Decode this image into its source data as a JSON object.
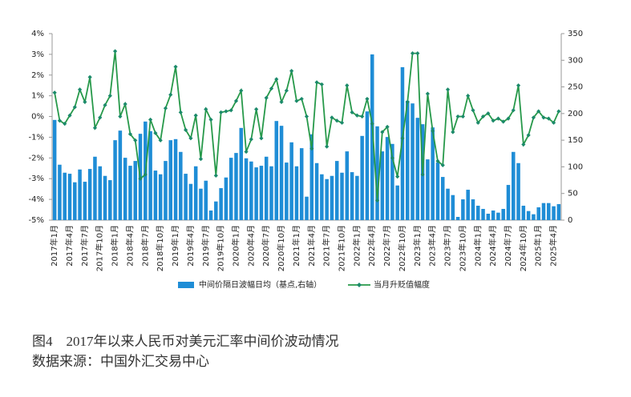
{
  "chart_data": {
    "type": "bar_line",
    "title": "图4　2017年以来人民币对美元汇率中间价波动情况",
    "source": "数据来源：中国外汇交易中心",
    "categories": [
      "2017年1月",
      null,
      null,
      "2017年4月",
      null,
      null,
      "2017年7月",
      null,
      null,
      "2017年10月",
      null,
      null,
      "2018年1月",
      null,
      null,
      "2018年4月",
      null,
      null,
      "2018年7月",
      null,
      null,
      "2018年10月",
      null,
      null,
      "2019年1月",
      null,
      null,
      "2019年4月",
      null,
      null,
      "2019年7月",
      null,
      null,
      "2019年10月",
      null,
      null,
      "2020年1月",
      null,
      null,
      "2020年4月",
      null,
      null,
      "2020年7月",
      null,
      null,
      "2020年10月",
      null,
      null,
      "2021年1月",
      null,
      null,
      "2021年4月",
      null,
      null,
      "2021年7月",
      null,
      null,
      "2021年10月",
      null,
      null,
      "2022年1月",
      null,
      null,
      "2022年4月",
      null,
      null,
      "2022年7月",
      null,
      null,
      "2022年10月",
      null,
      null,
      "2023年1月",
      null,
      null,
      "2023年4月",
      null,
      null,
      "2023年7月",
      null,
      null,
      "2023年10月",
      null,
      null,
      "2024年1月",
      null,
      null,
      "2024年4月",
      null,
      null,
      "2024年7月",
      null,
      null,
      "2024年10月",
      null,
      null,
      "2025年1月",
      null,
      null,
      "2025年4月",
      null
    ],
    "series": [
      {
        "name": "中间价隔日波幅日均（基点,右轴）",
        "type": "bar",
        "axis": "y2",
        "color": "#1f8dd6",
        "values": [
          188,
          104,
          89,
          87,
          71,
          95,
          72,
          96,
          119,
          101,
          83,
          75,
          150,
          168,
          117,
          102,
          111,
          162,
          185,
          167,
          93,
          86,
          111,
          150,
          152,
          128,
          87,
          68,
          101,
          59,
          74,
          18,
          35,
          60,
          80,
          117,
          126,
          173,
          116,
          110,
          99,
          102,
          119,
          101,
          186,
          177,
          108,
          146,
          101,
          135,
          44,
          161,
          107,
          86,
          77,
          83,
          111,
          89,
          129,
          90,
          83,
          158,
          204,
          311,
          176,
          129,
          156,
          143,
          65,
          287,
          224,
          219,
          192,
          180,
          114,
          174,
          108,
          81,
          59,
          47,
          6,
          39,
          57,
          39,
          27,
          21,
          12,
          18,
          14,
          21,
          66,
          128,
          107,
          27,
          17,
          11,
          24,
          32,
          32,
          26,
          30
        ]
      },
      {
        "name": "当月升贬值幅度",
        "type": "line",
        "axis": "y",
        "color": "#27994a",
        "values": [
          1.15,
          -0.2,
          -0.35,
          0.05,
          0.45,
          1.3,
          0.7,
          1.9,
          -0.55,
          -0.05,
          0.55,
          1.0,
          3.15,
          0,
          0.6,
          -0.85,
          -1.15,
          -3.0,
          -2.8,
          -0.15,
          -0.8,
          -1.15,
          0.4,
          1.05,
          2.4,
          0.2,
          -0.65,
          -1.05,
          0.05,
          -2.05,
          0.35,
          -0.15,
          -2.85,
          0.2,
          0.25,
          0.3,
          0.75,
          1.25,
          -1.7,
          -1.1,
          0.35,
          -1.05,
          0.9,
          1.35,
          1.8,
          0.7,
          1.25,
          2.2,
          0.75,
          0.85,
          0,
          -1.55,
          1.65,
          1.55,
          -1.45,
          -0.05,
          -0.2,
          -0.3,
          1.5,
          0.2,
          0.05,
          0,
          0.85,
          -0.35,
          -4.05,
          -0.75,
          -0.5,
          -2.0,
          -2.9,
          -1.05,
          0.7,
          3.05,
          3.05,
          -2.8,
          1.1,
          -0.7,
          -2.15,
          -2.35,
          1.3,
          -0.75,
          0,
          0,
          1.0,
          0.3,
          -0.3,
          0,
          0.15,
          -0.2,
          -0.1,
          -0.25,
          -0.1,
          0.3,
          1.5,
          -1.35,
          -0.9,
          -0.05,
          0.25,
          -0.05,
          -0.1,
          -0.3,
          0.25
        ]
      }
    ],
    "ylim": [
      -5,
      4
    ],
    "yticks": [
      {
        "value": -5,
        "label": "-5%"
      },
      {
        "value": -4,
        "label": "-4%"
      },
      {
        "value": -3,
        "label": "-3%"
      },
      {
        "value": -2,
        "label": "-2%"
      },
      {
        "value": -1,
        "label": "-1%"
      },
      {
        "value": 0,
        "label": "0%"
      },
      {
        "value": 1,
        "label": "1%"
      },
      {
        "value": 2,
        "label": "2%"
      },
      {
        "value": 3,
        "label": "3%"
      },
      {
        "value": 4,
        "label": "4%"
      }
    ],
    "y2lim": [
      0,
      350
    ],
    "y2ticks": [
      0,
      50,
      100,
      150,
      200,
      250,
      300,
      350
    ],
    "grid": false,
    "legend": "bottom"
  }
}
